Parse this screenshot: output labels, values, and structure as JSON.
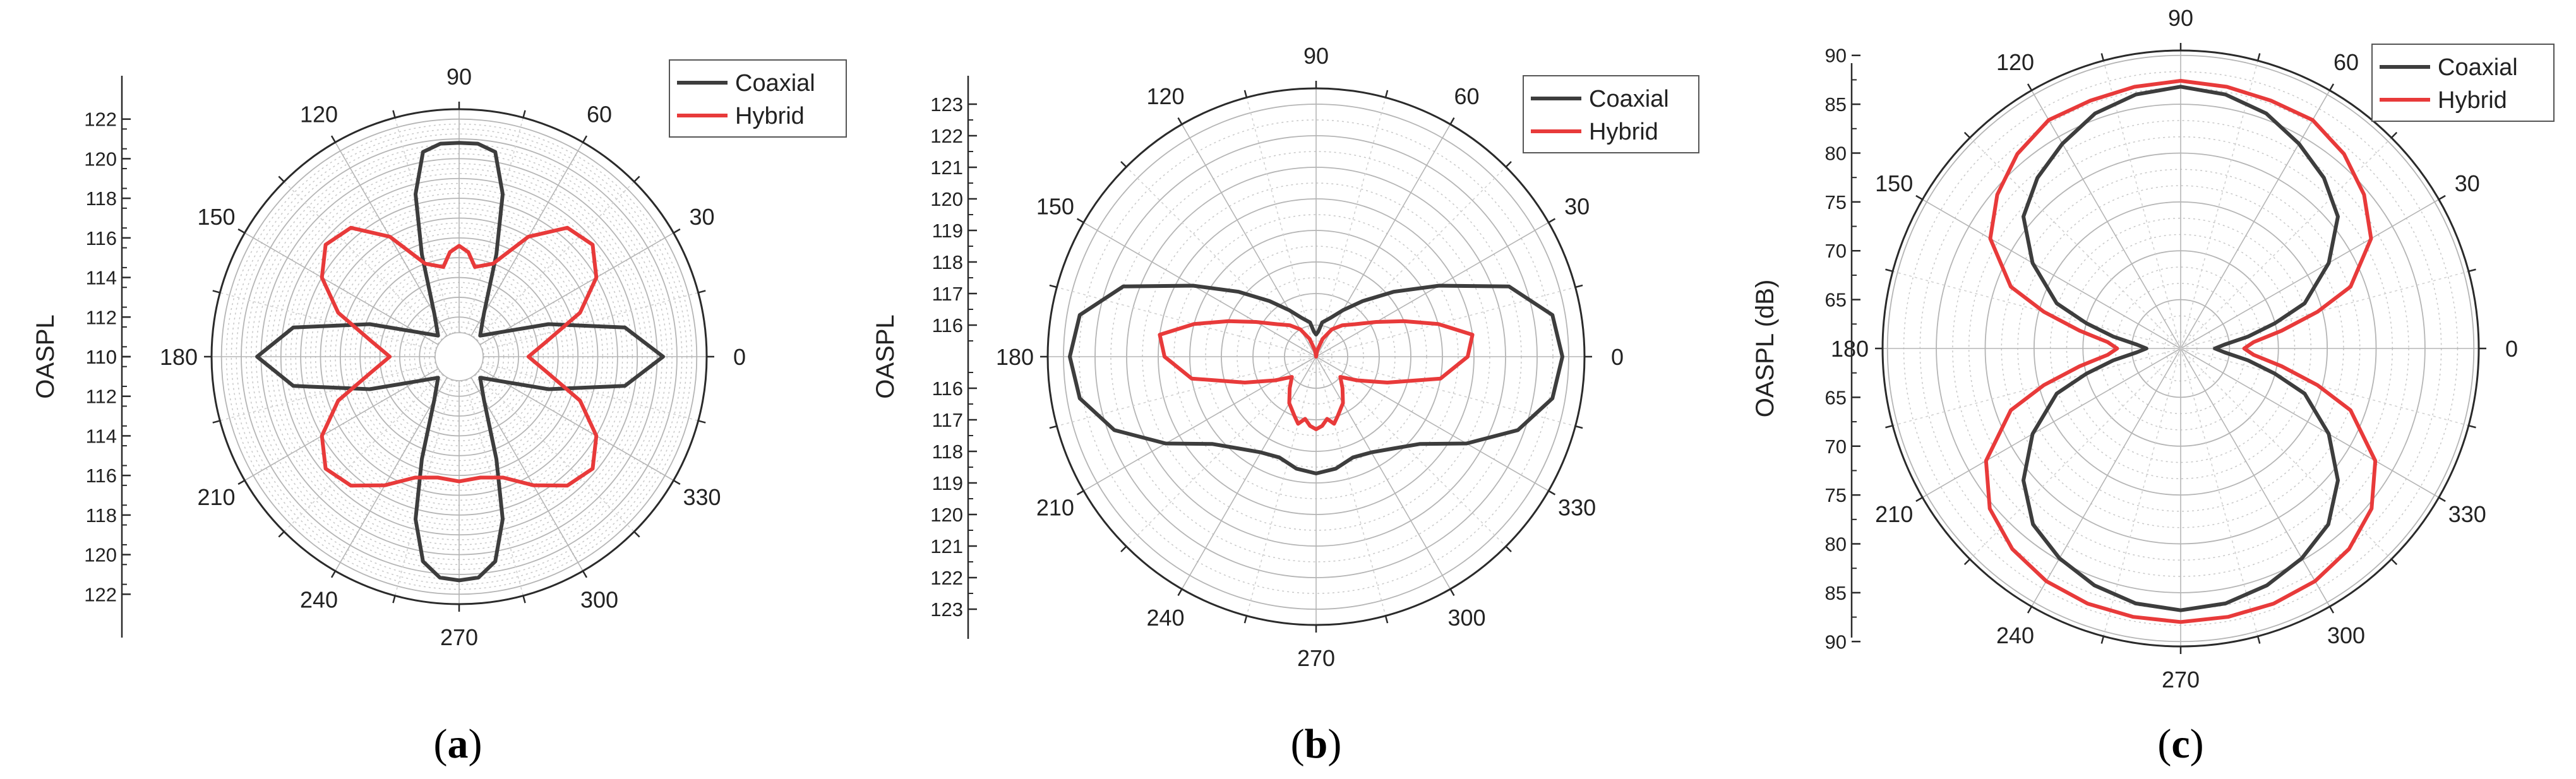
{
  "chart_data": [
    {
      "type": "polar-line",
      "caption": {
        "open": "(",
        "letter": "a",
        "close": ")"
      },
      "ylabel": "OASPL",
      "radial_ticks": [
        "110",
        "112",
        "114",
        "116",
        "118",
        "120",
        "122"
      ],
      "radial_range": [
        110,
        122.5
      ],
      "angle_ticks": [
        "0",
        "30",
        "60",
        "90",
        "120",
        "150",
        "180",
        "210",
        "240",
        "270",
        "300",
        "330"
      ],
      "legend": {
        "position": "top-right",
        "entries": [
          "Coaxial",
          "Hybrid"
        ]
      },
      "series": [
        {
          "name": "Coaxial",
          "color": "#3d3d3d",
          "points": [
            [
              0,
              120.3
            ],
            [
              10,
              118.5
            ],
            [
              20,
              114.8
            ],
            [
              30,
              112.5
            ],
            [
              45,
              111.5
            ],
            [
              60,
              112.5
            ],
            [
              70,
              115.5
            ],
            [
              75,
              118.5
            ],
            [
              80,
              120.5
            ],
            [
              85,
              120.8
            ],
            [
              90,
              120.8
            ],
            [
              95,
              120.8
            ],
            [
              100,
              120.5
            ],
            [
              105,
              118.5
            ],
            [
              110,
              115.5
            ],
            [
              120,
              112.5
            ],
            [
              135,
              111.5
            ],
            [
              150,
              112.5
            ],
            [
              160,
              114.8
            ],
            [
              170,
              118.5
            ],
            [
              180,
              120.2
            ],
            [
              190,
              118.5
            ],
            [
              200,
              114.8
            ],
            [
              210,
              112.5
            ],
            [
              225,
              111.5
            ],
            [
              240,
              112.5
            ],
            [
              250,
              115.5
            ],
            [
              255,
              118.5
            ],
            [
              260,
              120.5
            ],
            [
              265,
              121.2
            ],
            [
              270,
              121.3
            ],
            [
              275,
              121.2
            ],
            [
              280,
              120.5
            ],
            [
              285,
              118.5
            ],
            [
              290,
              115.5
            ],
            [
              300,
              112.5
            ],
            [
              315,
              111.5
            ],
            [
              330,
              112.5
            ],
            [
              340,
              114.8
            ],
            [
              350,
              118.5
            ],
            [
              360,
              120.3
            ]
          ]
        },
        {
          "name": "Hybrid",
          "color": "#e83a3a",
          "points": [
            [
              0,
              113.5
            ],
            [
              10,
              114.5
            ],
            [
              20,
              116.5
            ],
            [
              30,
              118.0
            ],
            [
              40,
              118.8
            ],
            [
              50,
              118.5
            ],
            [
              60,
              117.0
            ],
            [
              70,
              115.0
            ],
            [
              80,
              114.6
            ],
            [
              85,
              115.3
            ],
            [
              90,
              115.6
            ],
            [
              95,
              115.3
            ],
            [
              100,
              114.6
            ],
            [
              110,
              115.0
            ],
            [
              120,
              117.0
            ],
            [
              130,
              118.5
            ],
            [
              140,
              118.8
            ],
            [
              150,
              118.0
            ],
            [
              160,
              116.5
            ],
            [
              170,
              114.5
            ],
            [
              180,
              113.5
            ],
            [
              190,
              114.5
            ],
            [
              200,
              116.5
            ],
            [
              210,
              118.0
            ],
            [
              220,
              118.8
            ],
            [
              230,
              118.5
            ],
            [
              240,
              117.5
            ],
            [
              250,
              116.5
            ],
            [
              260,
              116.2
            ],
            [
              270,
              116.3
            ],
            [
              280,
              116.2
            ],
            [
              290,
              116.5
            ],
            [
              300,
              117.5
            ],
            [
              310,
              118.5
            ],
            [
              320,
              118.8
            ],
            [
              330,
              118.0
            ],
            [
              340,
              116.5
            ],
            [
              350,
              114.5
            ],
            [
              360,
              113.5
            ]
          ]
        }
      ]
    },
    {
      "type": "polar-line",
      "caption": {
        "open": "(",
        "letter": "b",
        "close": ")"
      },
      "ylabel": "OASPL",
      "radial_ticks": [
        "116",
        "117",
        "118",
        "119",
        "120",
        "121",
        "122",
        "123"
      ],
      "radial_range": [
        115,
        123.5
      ],
      "angle_ticks": [
        "0",
        "30",
        "60",
        "90",
        "120",
        "150",
        "180",
        "210",
        "240",
        "270",
        "300",
        "330"
      ],
      "legend": {
        "position": "top-right",
        "entries": [
          "Coaxial",
          "Hybrid"
        ]
      },
      "series": [
        {
          "name": "Coaxial",
          "color": "#3d3d3d",
          "points": [
            [
              0,
              122.8
            ],
            [
              10,
              122.6
            ],
            [
              20,
              121.5
            ],
            [
              30,
              119.5
            ],
            [
              40,
              118.2
            ],
            [
              50,
              117.3
            ],
            [
              60,
              116.7
            ],
            [
              70,
              116.3
            ],
            [
              80,
              116.1
            ],
            [
              85,
              115.8
            ],
            [
              90,
              115.7
            ],
            [
              95,
              115.8
            ],
            [
              100,
              116.1
            ],
            [
              110,
              116.3
            ],
            [
              120,
              116.7
            ],
            [
              130,
              117.3
            ],
            [
              140,
              118.2
            ],
            [
              150,
              119.5
            ],
            [
              160,
              121.5
            ],
            [
              170,
              122.6
            ],
            [
              180,
              122.8
            ],
            [
              190,
              122.6
            ],
            [
              200,
              121.8
            ],
            [
              210,
              120.5
            ],
            [
              220,
              119.3
            ],
            [
              230,
              118.8
            ],
            [
              240,
              118.5
            ],
            [
              250,
              118.4
            ],
            [
              260,
              118.6
            ],
            [
              270,
              118.7
            ],
            [
              280,
              118.6
            ],
            [
              290,
              118.4
            ],
            [
              300,
              118.5
            ],
            [
              310,
              118.8
            ],
            [
              320,
              119.3
            ],
            [
              330,
              120.5
            ],
            [
              340,
              121.8
            ],
            [
              350,
              122.6
            ],
            [
              360,
              122.8
            ]
          ]
        },
        {
          "name": "Hybrid",
          "color": "#e83a3a",
          "points": [
            [
              0,
              119.8
            ],
            [
              8,
              120.0
            ],
            [
              15,
              119.0
            ],
            [
              22,
              118.0
            ],
            [
              30,
              117.2
            ],
            [
              40,
              116.6
            ],
            [
              50,
              116.3
            ],
            [
              60,
              116.0
            ],
            [
              70,
              115.6
            ],
            [
              80,
              115.2
            ],
            [
              90,
              115.0
            ],
            [
              100,
              115.2
            ],
            [
              110,
              115.6
            ],
            [
              120,
              116.0
            ],
            [
              130,
              116.3
            ],
            [
              140,
              116.6
            ],
            [
              150,
              117.2
            ],
            [
              158,
              118.0
            ],
            [
              165,
              119.0
            ],
            [
              172,
              120.0
            ],
            [
              180,
              119.8
            ],
            [
              190,
              119.0
            ],
            [
              200,
              117.4
            ],
            [
              210,
              116.5
            ],
            [
              220,
              116.0
            ],
            [
              230,
              116.3
            ],
            [
              240,
              116.7
            ],
            [
              250,
              117.0
            ],
            [
              255,
              117.2
            ],
            [
              260,
              117.0
            ],
            [
              265,
              117.2
            ],
            [
              270,
              117.3
            ],
            [
              275,
              117.2
            ],
            [
              280,
              117.0
            ],
            [
              285,
              117.2
            ],
            [
              290,
              117.0
            ],
            [
              300,
              116.7
            ],
            [
              310,
              116.3
            ],
            [
              320,
              116.0
            ],
            [
              330,
              116.5
            ],
            [
              340,
              117.4
            ],
            [
              350,
              119.0
            ],
            [
              360,
              119.8
            ]
          ]
        }
      ]
    },
    {
      "type": "polar-line",
      "caption": {
        "open": "(",
        "letter": "c",
        "close": ")"
      },
      "ylabel": "OASPL (dB)",
      "radial_ticks": [
        "65",
        "70",
        "75",
        "80",
        "85",
        "90"
      ],
      "radial_range": [
        60,
        90.5
      ],
      "angle_ticks": [
        "0",
        "30",
        "60",
        "90",
        "120",
        "150",
        "180",
        "210",
        "240",
        "270",
        "300",
        "330"
      ],
      "legend": {
        "position": "top-right",
        "entries": [
          "Coaxial",
          "Hybrid"
        ]
      },
      "series": [
        {
          "name": "Coaxial",
          "color": "#3d3d3d",
          "points": [
            [
              0,
              63.5
            ],
            [
              5,
              64.5
            ],
            [
              10,
              67.0
            ],
            [
              15,
              70.0
            ],
            [
              20,
              73.5
            ],
            [
              30,
              77.5
            ],
            [
              40,
              81.0
            ],
            [
              50,
              82.8
            ],
            [
              60,
              84.2
            ],
            [
              70,
              85.6
            ],
            [
              80,
              86.4
            ],
            [
              90,
              86.8
            ],
            [
              100,
              86.4
            ],
            [
              110,
              85.6
            ],
            [
              120,
              84.2
            ],
            [
              130,
              82.8
            ],
            [
              140,
              81.0
            ],
            [
              150,
              77.5
            ],
            [
              160,
              73.5
            ],
            [
              165,
              70.0
            ],
            [
              170,
              67.0
            ],
            [
              175,
              64.5
            ],
            [
              180,
              63.5
            ],
            [
              185,
              64.5
            ],
            [
              190,
              67.0
            ],
            [
              195,
              70.0
            ],
            [
              200,
              73.5
            ],
            [
              210,
              77.5
            ],
            [
              220,
              81.0
            ],
            [
              230,
              83.5
            ],
            [
              240,
              84.8
            ],
            [
              250,
              85.8
            ],
            [
              260,
              86.5
            ],
            [
              270,
              86.8
            ],
            [
              280,
              86.5
            ],
            [
              290,
              85.8
            ],
            [
              300,
              84.8
            ],
            [
              310,
              83.5
            ],
            [
              320,
              81.0
            ],
            [
              330,
              77.5
            ],
            [
              340,
              73.5
            ],
            [
              345,
              70.0
            ],
            [
              350,
              67.0
            ],
            [
              355,
              64.5
            ],
            [
              360,
              63.5
            ]
          ]
        },
        {
          "name": "Hybrid",
          "color": "#e83a3a",
          "points": [
            [
              0,
              66.5
            ],
            [
              5,
              67.5
            ],
            [
              10,
              70.5
            ],
            [
              15,
              74.5
            ],
            [
              20,
              78.5
            ],
            [
              30,
              82.5
            ],
            [
              40,
              84.5
            ],
            [
              50,
              86.0
            ],
            [
              60,
              87.0
            ],
            [
              70,
              87.0
            ],
            [
              80,
              87.2
            ],
            [
              90,
              87.4
            ],
            [
              100,
              87.2
            ],
            [
              110,
              87.0
            ],
            [
              120,
              87.0
            ],
            [
              130,
              86.0
            ],
            [
              140,
              84.5
            ],
            [
              150,
              82.5
            ],
            [
              160,
              78.5
            ],
            [
              165,
              74.5
            ],
            [
              170,
              70.5
            ],
            [
              175,
              67.5
            ],
            [
              180,
              66.5
            ],
            [
              185,
              67.5
            ],
            [
              190,
              70.5
            ],
            [
              195,
              74.5
            ],
            [
              200,
              78.5
            ],
            [
              210,
              83.0
            ],
            [
              220,
              85.5
            ],
            [
              230,
              86.8
            ],
            [
              240,
              87.5
            ],
            [
              250,
              87.8
            ],
            [
              260,
              87.9
            ],
            [
              270,
              88.0
            ],
            [
              280,
              87.9
            ],
            [
              290,
              87.8
            ],
            [
              300,
              87.5
            ],
            [
              310,
              86.8
            ],
            [
              320,
              85.5
            ],
            [
              330,
              83.0
            ],
            [
              340,
              78.5
            ],
            [
              345,
              74.5
            ],
            [
              350,
              70.5
            ],
            [
              355,
              67.5
            ],
            [
              360,
              66.5
            ]
          ]
        }
      ]
    }
  ]
}
